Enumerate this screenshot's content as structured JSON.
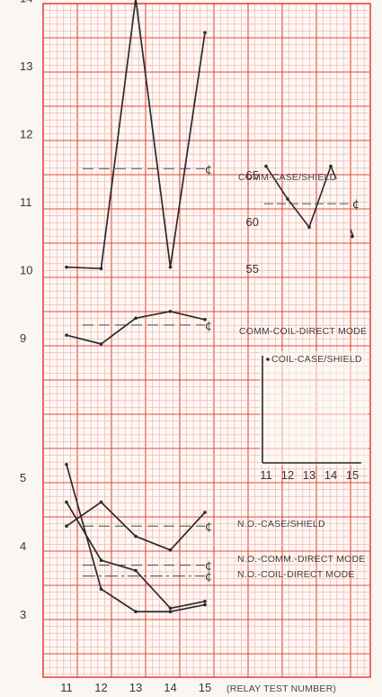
{
  "chart_data": {
    "type": "line",
    "grid": true,
    "x_label": "(RELAY TEST NUMBER)",
    "x_ticks": [
      "11",
      "12",
      "13",
      "14",
      "15"
    ],
    "y_ticks_upper": [
      "9",
      "10",
      "11",
      "12",
      "13",
      "14"
    ],
    "y_ticks_lower": [
      "3",
      "4",
      "5"
    ],
    "centerline_symbol": "¢",
    "series": [
      {
        "name": "COMM-CASE/SHIELD",
        "x": [
          11,
          12,
          13,
          14,
          15
        ],
        "y": [
          10.05,
          10.03,
          14.0,
          10.05,
          13.5
        ],
        "centerline": 11.5,
        "centerline_style": "dash"
      },
      {
        "name": "COMM-COIL-DIRECT MODE",
        "x": [
          11,
          12,
          13,
          14,
          15
        ],
        "y": [
          9.05,
          8.92,
          9.3,
          9.4,
          9.28
        ],
        "centerline": 9.2,
        "centerline_style": "dash"
      },
      {
        "name": "N.O.-CASE/SHIELD",
        "x": [
          11,
          12,
          13,
          14,
          15
        ],
        "y": [
          4.3,
          4.65,
          4.15,
          3.95,
          4.5
        ],
        "centerline": 4.3,
        "centerline_style": "dash"
      },
      {
        "name": "N.O.-COMM.-DIRECT MODE",
        "x": [
          11,
          12,
          13,
          14,
          15
        ],
        "y": [
          4.65,
          3.8,
          3.65,
          3.1,
          3.2
        ],
        "centerline": 3.73,
        "centerline_style": "dash"
      },
      {
        "name": "N.O.-COIL-DIRECT MODE",
        "x": [
          11,
          12,
          13,
          14,
          15
        ],
        "y": [
          5.2,
          3.38,
          3.05,
          3.05,
          3.15
        ],
        "centerline": 3.57,
        "centerline_style": "dashdot"
      }
    ],
    "inset": {
      "series_name": "COIL-CASE/SHIELD",
      "x_ticks": [
        "11",
        "12",
        "13",
        "14",
        "15"
      ],
      "y_ticks": [
        "55",
        "60",
        "65"
      ],
      "x": [
        11,
        12,
        13,
        14,
        15
      ],
      "y": [
        66,
        62.5,
        59.5,
        66,
        58.5
      ],
      "centerline": 62
    }
  },
  "colors": {
    "grid_fine": "#f3a8a8",
    "grid_major": "#e9473f",
    "ink": "#2b2b2b",
    "paper": "#faf7f2"
  }
}
